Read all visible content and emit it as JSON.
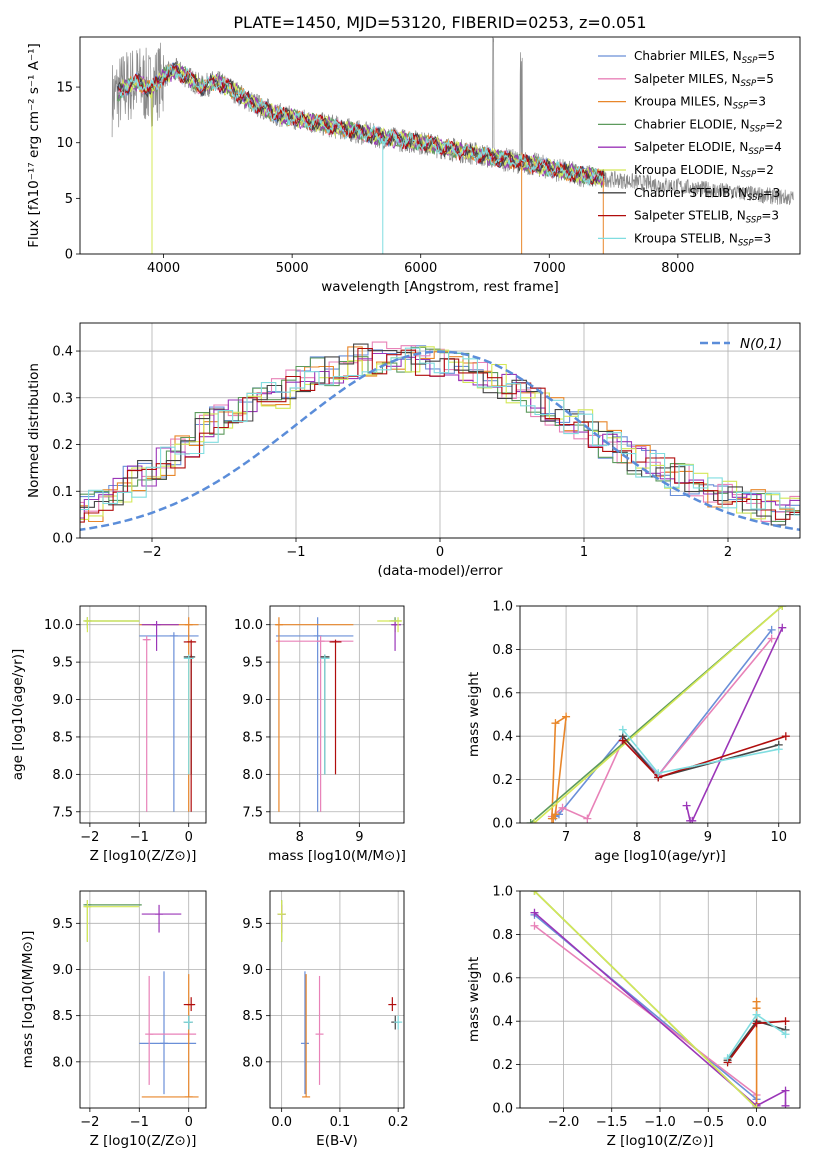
{
  "title": "PLATE=1450, MJD=53120, FIBERID=0253, z=0.051",
  "colors": {
    "chabrier_miles": "#6a8fd8",
    "salpeter_miles": "#e882b8",
    "kroupa_miles": "#e8862a",
    "chabrier_elodie": "#5d9a5d",
    "salpeter_elodie": "#9b36b8",
    "kroupa_elodie": "#d4e857",
    "chabrier_stelib": "#444444",
    "salpeter_stelib": "#b00d0d",
    "kroupa_stelib": "#80dde0",
    "data": "#8a8a8a",
    "gauss": "#5b8dd9"
  },
  "chart_data": [
    {
      "id": "spectrum",
      "type": "line",
      "xlabel": "wavelength [Angstrom, rest frame]",
      "ylabel": "Flux [fλ10⁻¹⁷ erg cm⁻² s⁻¹ A⁻¹]",
      "xlim": [
        3350,
        8950
      ],
      "ylim": [
        0,
        19.5
      ],
      "xticks": [
        "4000",
        "5000",
        "6000",
        "7000",
        "8000"
      ],
      "yticks": [
        "0",
        "5",
        "10",
        "15"
      ],
      "legend_position": "upper-right",
      "legend": [
        "Chabrier MILES, N_SSP=5",
        "Salpeter MILES, N_SSP=5",
        "Kroupa MILES, N_SSP=3",
        "Chabrier ELODIE, N_SSP=2",
        "Salpeter ELODIE, N_SSP=4",
        "Kroupa ELODIE, N_SSP=2",
        "Chabrier STELIB, N_SSP=3",
        "Salpeter STELIB, N_SSP=3",
        "Kroupa STELIB, N_SSP=3"
      ],
      "legend_keys": [
        "chabrier_miles",
        "salpeter_miles",
        "kroupa_miles",
        "chabrier_elodie",
        "salpeter_elodie",
        "kroupa_elodie",
        "chabrier_stelib",
        "salpeter_stelib",
        "kroupa_stelib"
      ],
      "continuum": {
        "x": [
          3600,
          3700,
          3800,
          3900,
          4000,
          4100,
          4200,
          4300,
          4400,
          4500,
          4700,
          4900,
          5100,
          5300,
          5500,
          5700,
          6000,
          6300,
          6600,
          6900,
          7200,
          7400
        ],
        "y": [
          14.0,
          15.0,
          15.5,
          14.8,
          16.0,
          16.5,
          15.8,
          15.0,
          15.5,
          15.0,
          13.5,
          12.5,
          12.0,
          11.5,
          11.0,
          10.5,
          10.0,
          9.3,
          8.6,
          8.0,
          7.2,
          6.8
        ]
      }
    },
    {
      "id": "residuals",
      "type": "line",
      "xlabel": "(data-model)/error",
      "ylabel": "Normed distribution",
      "xlim": [
        -2.5,
        2.5
      ],
      "ylim": [
        0,
        0.46
      ],
      "xticks": [
        "−2",
        "−1",
        "0",
        "1",
        "2"
      ],
      "yticks": [
        "0.0",
        "0.1",
        "0.2",
        "0.3",
        "0.4"
      ],
      "legend": [
        "N(0,1)"
      ],
      "gaussian": {
        "mean": 0,
        "sigma": 1
      },
      "bin_width": 0.1,
      "base_y": [
        0.035,
        0.036,
        0.042,
        0.048,
        0.06,
        0.068,
        0.085,
        0.095,
        0.12,
        0.135,
        0.16,
        0.185,
        0.2,
        0.235,
        0.25,
        0.275,
        0.28,
        0.3,
        0.31,
        0.33,
        0.34,
        0.355,
        0.36,
        0.375,
        0.38,
        0.385,
        0.38,
        0.39,
        0.38,
        0.375,
        0.37,
        0.36,
        0.35,
        0.34,
        0.32,
        0.31,
        0.29,
        0.27,
        0.255,
        0.24,
        0.22,
        0.205,
        0.185,
        0.165,
        0.155,
        0.14,
        0.125,
        0.11,
        0.1,
        0.09,
        0.08,
        0.07,
        0.065,
        0.06,
        0.055,
        0.05,
        0.045,
        0.04,
        0.035,
        0.032
      ]
    },
    {
      "id": "age_vs_Z",
      "type": "scatter",
      "xlabel": "Z [log10(Z/Z⊙)]",
      "ylabel": "age  [log10(age/yr)]",
      "xlim": [
        -2.2,
        0.35
      ],
      "ylim": [
        7.35,
        10.25
      ],
      "xticks": [
        "−2",
        "−1",
        "0"
      ],
      "yticks": [
        "7.5",
        "8.0",
        "8.5",
        "9.0",
        "9.5",
        "10.0"
      ],
      "points": [
        {
          "key": "chabrier_miles",
          "x": -0.3,
          "y": 9.85,
          "xl": -1.0,
          "xh": 0.2,
          "yl": 7.5,
          "yh": 9.9
        },
        {
          "key": "salpeter_miles",
          "x": -0.85,
          "y": 9.8,
          "xl": -0.9,
          "xh": -0.8,
          "yl": 7.5,
          "yh": 9.85
        },
        {
          "key": "kroupa_miles",
          "x": 0.0,
          "y": 10.0,
          "xl": -1.0,
          "xh": 0.2,
          "yl": 7.5,
          "yh": 10.1
        },
        {
          "key": "chabrier_elodie",
          "x": -2.05,
          "y": 10.05,
          "xl": -2.1,
          "xh": -1.0,
          "yl": 9.95,
          "yh": 10.1
        },
        {
          "key": "salpeter_elodie",
          "x": -0.65,
          "y": 10.0,
          "xl": -0.95,
          "xh": -0.2,
          "yl": 9.65,
          "yh": 10.05
        },
        {
          "key": "kroupa_elodie",
          "x": -2.05,
          "y": 10.05,
          "xl": -2.1,
          "xh": -1.0,
          "yl": 9.9,
          "yh": 10.1
        },
        {
          "key": "chabrier_stelib",
          "x": 0.05,
          "y": 9.57,
          "xl": -0.1,
          "xh": 0.1,
          "yl": 8.0,
          "yh": 9.6
        },
        {
          "key": "salpeter_stelib",
          "x": 0.05,
          "y": 9.77,
          "xl": -0.1,
          "xh": 0.15,
          "yl": 7.5,
          "yh": 9.8
        },
        {
          "key": "kroupa_stelib",
          "x": 0.0,
          "y": 9.55,
          "xl": -0.1,
          "xh": 0.1,
          "yl": 8.0,
          "yh": 9.6
        }
      ]
    },
    {
      "id": "age_vs_mass",
      "type": "scatter",
      "xlabel": "mass [log10(M/M⊙)]",
      "xlim": [
        7.5,
        9.75
      ],
      "ylim": [
        7.35,
        10.25
      ],
      "xticks": [
        "8",
        "9"
      ],
      "yticks": [
        "7.5",
        "8.0",
        "8.5",
        "9.0",
        "9.5",
        "10.0"
      ],
      "points": [
        {
          "key": "chabrier_miles",
          "x": 8.3,
          "y": 9.85,
          "xl": 7.6,
          "xh": 8.9,
          "yl": 7.5,
          "yh": 10.1
        },
        {
          "key": "salpeter_miles",
          "x": 8.35,
          "y": 9.78,
          "xl": 7.6,
          "xh": 8.9,
          "yl": 7.5,
          "yh": 9.85
        },
        {
          "key": "kroupa_miles",
          "x": 7.65,
          "y": 10.0,
          "xl": 7.6,
          "xh": 8.9,
          "yl": 7.5,
          "yh": 10.1
        },
        {
          "key": "chabrier_elodie",
          "x": 9.6,
          "y": 10.05,
          "xl": 9.5,
          "xh": 9.7,
          "yl": 9.9,
          "yh": 10.1
        },
        {
          "key": "salpeter_elodie",
          "x": 9.6,
          "y": 10.0,
          "xl": 9.55,
          "xh": 9.7,
          "yl": 9.65,
          "yh": 10.05
        },
        {
          "key": "kroupa_elodie",
          "x": 9.65,
          "y": 10.05,
          "xl": 9.3,
          "xh": 9.7,
          "yl": 9.9,
          "yh": 10.1
        },
        {
          "key": "chabrier_stelib",
          "x": 8.42,
          "y": 9.57,
          "xl": 8.35,
          "xh": 8.5,
          "yl": 8.0,
          "yh": 9.6
        },
        {
          "key": "salpeter_stelib",
          "x": 8.6,
          "y": 9.77,
          "xl": 8.5,
          "xh": 8.7,
          "yl": 8.0,
          "yh": 9.8
        },
        {
          "key": "kroupa_stelib",
          "x": 8.42,
          "y": 9.55,
          "xl": 8.35,
          "xh": 8.5,
          "yl": 8.0,
          "yh": 9.6
        }
      ]
    },
    {
      "id": "weight_vs_age",
      "type": "line",
      "xlabel": "age  [log10(age/yr)]",
      "ylabel": "mass weight",
      "xlim": [
        6.35,
        10.3
      ],
      "ylim": [
        0,
        1.0
      ],
      "xticks": [
        "7",
        "8",
        "9",
        "10"
      ],
      "yticks": [
        "0.0",
        "0.2",
        "0.4",
        "0.6",
        "0.8",
        "1.0"
      ],
      "series": [
        {
          "key": "chabrier_miles",
          "x": [
            6.85,
            6.9,
            7.8,
            8.3,
            9.9
          ],
          "y": [
            0.03,
            0.04,
            0.4,
            0.22,
            0.89
          ]
        },
        {
          "key": "salpeter_miles",
          "x": [
            6.8,
            6.95,
            7.3,
            7.8,
            8.3,
            9.9
          ],
          "y": [
            0.03,
            0.07,
            0.02,
            0.38,
            0.22,
            0.85
          ]
        },
        {
          "key": "kroupa_miles",
          "x": [
            6.8,
            6.85,
            7.0,
            6.85,
            6.82
          ],
          "y": [
            0.02,
            0.46,
            0.49,
            0.04,
            0.02
          ]
        },
        {
          "key": "chabrier_elodie",
          "x": [
            6.5,
            10.05
          ],
          "y": [
            0.0,
            1.0
          ]
        },
        {
          "key": "salpeter_elodie",
          "x": [
            8.7,
            8.75,
            8.78,
            10.05
          ],
          "y": [
            0.08,
            0.01,
            0.01,
            0.9
          ]
        },
        {
          "key": "kroupa_elodie",
          "x": [
            6.55,
            10.05
          ],
          "y": [
            0.0,
            1.0
          ]
        },
        {
          "key": "chabrier_stelib",
          "x": [
            7.8,
            8.3,
            10.0
          ],
          "y": [
            0.4,
            0.21,
            0.36
          ]
        },
        {
          "key": "salpeter_stelib",
          "x": [
            7.8,
            8.3,
            10.1
          ],
          "y": [
            0.38,
            0.21,
            0.4
          ]
        },
        {
          "key": "kroupa_stelib",
          "x": [
            7.8,
            8.3,
            10.0
          ],
          "y": [
            0.43,
            0.23,
            0.34
          ]
        }
      ]
    },
    {
      "id": "mass_vs_Z",
      "type": "scatter",
      "xlabel": "Z [log10(Z/Z⊙)]",
      "ylabel": "mass [log10(M/M⊙)]",
      "xlim": [
        -2.2,
        0.35
      ],
      "ylim": [
        7.5,
        9.85
      ],
      "xticks": [
        "−2",
        "−1",
        "0"
      ],
      "yticks": [
        "8.0",
        "8.5",
        "9.0",
        "9.5"
      ],
      "points": [
        {
          "key": "chabrier_miles",
          "x": -0.5,
          "y": 8.2,
          "xl": -1.0,
          "xh": 0.15,
          "yl": 7.65,
          "yh": 8.98
        },
        {
          "key": "salpeter_miles",
          "x": -0.8,
          "y": 8.3,
          "xl": -0.8,
          "xh": 0.15,
          "yl": 7.75,
          "yh": 8.93
        },
        {
          "key": "kroupa_miles",
          "x": 0.0,
          "y": 7.62,
          "xl": -0.95,
          "xh": 0.2,
          "yl": 7.62,
          "yh": 8.95
        },
        {
          "key": "chabrier_elodie",
          "x": -2.05,
          "y": 9.7,
          "xl": -2.1,
          "xh": -0.95,
          "yl": 9.3,
          "yh": 9.75
        },
        {
          "key": "salpeter_elodie",
          "x": -0.6,
          "y": 9.6,
          "xl": -0.95,
          "xh": -0.15,
          "yl": 9.4,
          "yh": 9.7
        },
        {
          "key": "kroupa_elodie",
          "x": -2.05,
          "y": 9.68,
          "xl": -2.1,
          "xh": -1.0,
          "yl": 9.3,
          "yh": 9.75
        },
        {
          "key": "chabrier_stelib",
          "x": 0.0,
          "y": 8.43,
          "xl": -0.1,
          "xh": 0.05,
          "yl": 8.35,
          "yh": 8.5
        },
        {
          "key": "salpeter_stelib",
          "x": 0.05,
          "y": 8.62,
          "xl": -0.1,
          "xh": 0.1,
          "yl": 8.55,
          "yh": 8.7
        },
        {
          "key": "kroupa_stelib",
          "x": 0.0,
          "y": 8.43,
          "xl": -0.1,
          "xh": 0.05,
          "yl": 8.35,
          "yh": 8.5
        }
      ]
    },
    {
      "id": "mass_vs_ebv",
      "type": "scatter",
      "xlabel": "E(B-V)",
      "xlim": [
        -0.02,
        0.21
      ],
      "ylim": [
        7.5,
        9.85
      ],
      "xticks": [
        "0.0",
        "0.1",
        "0.2"
      ],
      "yticks": [
        "8.0",
        "8.5",
        "9.0",
        "9.5"
      ],
      "points": [
        {
          "key": "chabrier_miles",
          "x": 0.04,
          "y": 8.2,
          "yl": 7.65,
          "yh": 8.98
        },
        {
          "key": "salpeter_miles",
          "x": 0.065,
          "y": 8.3,
          "yl": 7.75,
          "yh": 8.93
        },
        {
          "key": "kroupa_miles",
          "x": 0.042,
          "y": 7.62,
          "yl": 7.62,
          "yh": 8.95
        },
        {
          "key": "chabrier_elodie",
          "x": 0.0,
          "y": 9.6,
          "yl": 9.3,
          "yh": 9.75
        },
        {
          "key": "salpeter_elodie",
          "x": 0.0,
          "y": 9.6,
          "yl": 9.4,
          "yh": 9.7
        },
        {
          "key": "kroupa_elodie",
          "x": 0.0,
          "y": 9.6,
          "yl": 9.3,
          "yh": 9.75
        },
        {
          "key": "chabrier_stelib",
          "x": 0.195,
          "y": 8.43,
          "yl": 8.35,
          "yh": 8.5
        },
        {
          "key": "salpeter_stelib",
          "x": 0.19,
          "y": 8.62,
          "yl": 8.55,
          "yh": 8.7
        },
        {
          "key": "kroupa_stelib",
          "x": 0.2,
          "y": 8.43,
          "yl": 8.35,
          "yh": 8.5
        }
      ]
    },
    {
      "id": "weight_vs_Z",
      "type": "line",
      "xlabel": "Z [log10(Z/Z⊙)]",
      "ylabel": "mass weight",
      "xlim": [
        -2.45,
        0.45
      ],
      "ylim": [
        0,
        1.0
      ],
      "xticks": [
        "−2.0",
        "−1.5",
        "−1.0",
        "−0.5",
        "0.0"
      ],
      "yticks": [
        "0.0",
        "0.2",
        "0.4",
        "0.6",
        "0.8",
        "1.0"
      ],
      "series": [
        {
          "key": "chabrier_miles",
          "x": [
            -2.3,
            0.0,
            0.0
          ],
          "y": [
            0.89,
            0.04,
            0.02
          ]
        },
        {
          "key": "salpeter_miles",
          "x": [
            -2.3,
            0.0,
            0.0
          ],
          "y": [
            0.84,
            0.06,
            0.02
          ]
        },
        {
          "key": "kroupa_miles",
          "x": [
            0.0,
            0.0,
            0.0
          ],
          "y": [
            0.02,
            0.46,
            0.49
          ]
        },
        {
          "key": "chabrier_elodie",
          "x": [
            -2.3,
            0.0
          ],
          "y": [
            1.0,
            0.0
          ]
        },
        {
          "key": "salpeter_elodie",
          "x": [
            -2.3,
            0.0,
            0.3,
            0.3
          ],
          "y": [
            0.9,
            0.01,
            0.08,
            0.01
          ]
        },
        {
          "key": "kroupa_elodie",
          "x": [
            -2.3,
            0.0
          ],
          "y": [
            1.0,
            0.0
          ]
        },
        {
          "key": "chabrier_stelib",
          "x": [
            -0.3,
            0.0,
            0.3
          ],
          "y": [
            0.22,
            0.4,
            0.36
          ]
        },
        {
          "key": "salpeter_stelib",
          "x": [
            -0.3,
            0.0,
            0.3
          ],
          "y": [
            0.21,
            0.39,
            0.4
          ]
        },
        {
          "key": "kroupa_stelib",
          "x": [
            -0.3,
            0.0,
            0.3
          ],
          "y": [
            0.23,
            0.43,
            0.34
          ]
        }
      ]
    }
  ]
}
